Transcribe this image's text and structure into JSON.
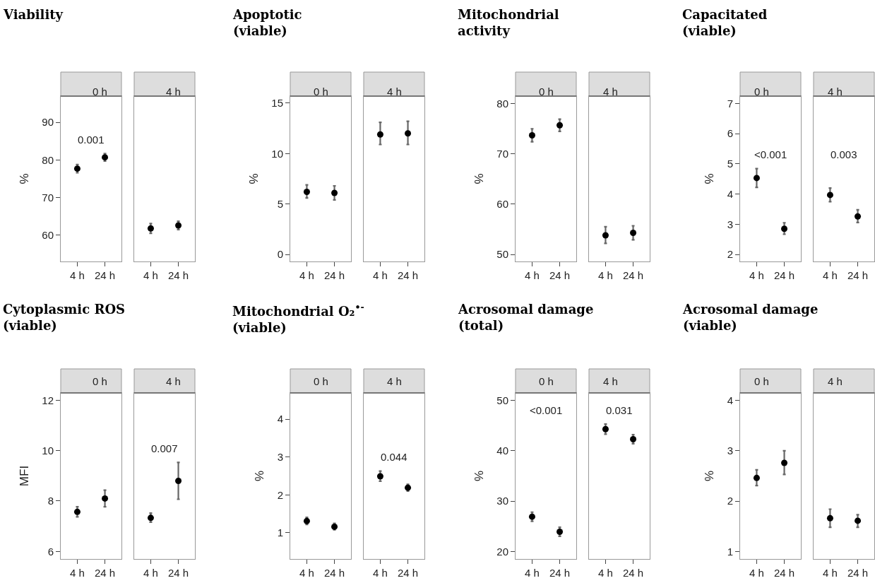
{
  "chart_data": [
    {
      "type": "scatter",
      "title": "Viability",
      "subtitle": "0 h",
      "ylabel": "%",
      "categories": [
        "4 h",
        "24 h"
      ],
      "series": [
        {
          "color": "#000000",
          "values": [
            77.7,
            80.7
          ],
          "errors": [
            [
              76.6,
              78.8
            ],
            [
              79.7,
              81.7
            ]
          ]
        }
      ],
      "ylim": [
        53,
        97
      ],
      "yticks": [
        60,
        70,
        80,
        90
      ],
      "annotations": [
        "0.001"
      ],
      "marker": "circle"
    },
    {
      "type": "scatter",
      "subtitle": "4 h",
      "categories": [
        "4 h",
        "24 h"
      ],
      "series": [
        {
          "color": "#000000",
          "values": [
            61.8,
            62.6
          ],
          "errors": [
            [
              60.5,
              63.1
            ],
            [
              61.5,
              63.7
            ]
          ]
        }
      ],
      "ylim": [
        53,
        97
      ],
      "tick_labels": "x",
      "marker": "circle"
    },
    {
      "type": "scatter",
      "title": "Apoptotic\n(viable)",
      "subtitle": "0 h",
      "ylabel": "%",
      "categories": [
        "4 h",
        "24 h"
      ],
      "series": [
        {
          "color": "#000000",
          "values": [
            6.2,
            6.1
          ],
          "errors": [
            [
              5.6,
              6.9
            ],
            [
              5.4,
              6.8
            ]
          ]
        }
      ],
      "ylim": [
        -0.7,
        15.7
      ],
      "yticks": [
        0,
        5,
        10,
        15
      ],
      "marker": "circle"
    },
    {
      "type": "scatter",
      "subtitle": "4 h",
      "categories": [
        "4 h",
        "24 h"
      ],
      "series": [
        {
          "color": "#000000",
          "values": [
            11.9,
            12.0
          ],
          "errors": [
            [
              10.9,
              13.1
            ],
            [
              10.9,
              13.2
            ]
          ]
        }
      ],
      "ylim": [
        -0.7,
        15.7
      ],
      "tick_labels": "x",
      "marker": "circle"
    },
    {
      "type": "scatter",
      "title": "Mitochondrial\nactivity",
      "subtitle": "0 h",
      "ylabel": "%",
      "categories": [
        "4 h",
        "24 h"
      ],
      "series": [
        {
          "color": "#000000",
          "values": [
            73.7,
            75.7
          ],
          "errors": [
            [
              72.4,
              75.0
            ],
            [
              74.5,
              76.9
            ]
          ]
        }
      ],
      "ylim": [
        48.6,
        81.5
      ],
      "yticks": [
        50,
        60,
        70,
        80
      ],
      "marker": "circle"
    },
    {
      "type": "scatter",
      "subtitle": "4 h",
      "categories": [
        "4 h",
        "24 h"
      ],
      "series": [
        {
          "color": "#000000",
          "values": [
            53.8,
            54.3
          ],
          "errors": [
            [
              52.2,
              55.5
            ],
            [
              52.9,
              55.7
            ]
          ]
        }
      ],
      "ylim": [
        48.6,
        81.5
      ],
      "tick_labels": "x",
      "marker": "circle"
    },
    {
      "type": "scatter",
      "title": "Capacitated\n(viable)",
      "subtitle": "0 h",
      "ylabel": "%",
      "categories": [
        "4 h",
        "24 h"
      ],
      "series": [
        {
          "color": "#000000",
          "values": [
            4.53,
            2.85
          ],
          "errors": [
            [
              4.22,
              4.84
            ],
            [
              2.67,
              3.05
            ]
          ]
        }
      ],
      "ylim": [
        1.77,
        7.24
      ],
      "yticks": [
        2,
        3,
        4,
        5,
        6,
        7
      ],
      "annotations": [
        "<0.001"
      ],
      "marker": "circle"
    },
    {
      "type": "scatter",
      "subtitle": "4 h",
      "categories": [
        "4 h",
        "24 h"
      ],
      "series": [
        {
          "color": "#000000",
          "values": [
            3.97,
            3.26
          ],
          "errors": [
            [
              3.75,
              4.2
            ],
            [
              3.06,
              3.48
            ]
          ]
        }
      ],
      "ylim": [
        1.77,
        7.24
      ],
      "tick_labels": "x",
      "annotations": [
        "0.003"
      ],
      "marker": "circle"
    },
    {
      "type": "scatter",
      "title": "Cytoplasmic ROS\n(viable)",
      "subtitle": "0 h",
      "ylabel": "MFI",
      "categories": [
        "4 h",
        "24 h"
      ],
      "series": [
        {
          "color": "#000000",
          "values": [
            7.57,
            8.1
          ],
          "errors": [
            [
              7.37,
              7.77
            ],
            [
              7.77,
              8.43
            ]
          ]
        }
      ],
      "ylim": [
        5.7,
        12.29
      ],
      "yticks": [
        6,
        8,
        10,
        12
      ],
      "marker": "circle"
    },
    {
      "type": "scatter",
      "subtitle": "4 h",
      "categories": [
        "4 h",
        "24 h"
      ],
      "series": [
        {
          "color": "#000000",
          "values": [
            7.33,
            8.8
          ],
          "errors": [
            [
              7.16,
              7.52
            ],
            [
              8.07,
              9.53
            ]
          ]
        }
      ],
      "ylim": [
        5.7,
        12.29
      ],
      "tick_labels": "x",
      "annotations": [
        "0.007"
      ],
      "marker": "circle"
    },
    {
      "type": "scatter",
      "title": "Mitochondrial O₂$^{•-}$\n(viable)",
      "subtitle": "0 h",
      "ylabel": "%",
      "categories": [
        "4 h",
        "24 h"
      ],
      "series": [
        {
          "color": "#000000",
          "values": [
            1.31,
            1.16
          ],
          "errors": [
            [
              1.22,
              1.41
            ],
            [
              1.08,
              1.25
            ]
          ]
        }
      ],
      "ylim": [
        0.31,
        4.69
      ],
      "yticks": [
        1,
        2,
        3,
        4
      ],
      "marker": "circle"
    },
    {
      "type": "scatter",
      "subtitle": "4 h",
      "categories": [
        "4 h",
        "24 h"
      ],
      "series": [
        {
          "color": "#000000",
          "values": [
            2.49,
            2.19
          ],
          "errors": [
            [
              2.36,
              2.63
            ],
            [
              2.1,
              2.28
            ]
          ]
        }
      ],
      "ylim": [
        0.31,
        4.69
      ],
      "tick_labels": "x",
      "annotations": [
        "0.044"
      ],
      "marker": "circle"
    },
    {
      "type": "scatter",
      "title": "Acrosomal damage\n(total)",
      "subtitle": "0 h",
      "ylabel": "%",
      "categories": [
        "4 h",
        "24 h"
      ],
      "series": [
        {
          "color": "#000000",
          "values": [
            26.9,
            23.9
          ],
          "errors": [
            [
              26.0,
              27.8
            ],
            [
              23.0,
              24.8
            ]
          ]
        }
      ],
      "ylim": [
        18.5,
        51.5
      ],
      "yticks": [
        20,
        30,
        40,
        50
      ],
      "annotations": [
        "<0.001"
      ],
      "marker": "circle"
    },
    {
      "type": "scatter",
      "subtitle": "4 h",
      "categories": [
        "4 h",
        "24 h"
      ],
      "series": [
        {
          "color": "#000000",
          "values": [
            44.3,
            42.3
          ],
          "errors": [
            [
              43.3,
              45.3
            ],
            [
              41.4,
              43.2
            ]
          ]
        }
      ],
      "ylim": [
        18.5,
        51.5
      ],
      "tick_labels": "x",
      "annotations": [
        "0.031"
      ],
      "marker": "circle"
    },
    {
      "type": "scatter",
      "title": "Acrosomal damage\n(viable)",
      "subtitle": "0 h",
      "ylabel": "%",
      "categories": [
        "4 h",
        "24 h"
      ],
      "series": [
        {
          "color": "#000000",
          "values": [
            2.46,
            2.76
          ],
          "errors": [
            [
              2.31,
              2.62
            ],
            [
              2.53,
              3.0
            ]
          ]
        }
      ],
      "ylim": [
        0.85,
        4.15
      ],
      "yticks": [
        1,
        2,
        3,
        4
      ],
      "marker": "circle"
    },
    {
      "type": "scatter",
      "subtitle": "4 h",
      "categories": [
        "4 h",
        "24 h"
      ],
      "series": [
        {
          "color": "#000000",
          "values": [
            1.66,
            1.61
          ],
          "errors": [
            [
              1.48,
              1.84
            ],
            [
              1.48,
              1.73
            ]
          ]
        }
      ],
      "ylim": [
        0.85,
        4.15
      ],
      "tick_labels": "x",
      "marker": "circle"
    }
  ]
}
